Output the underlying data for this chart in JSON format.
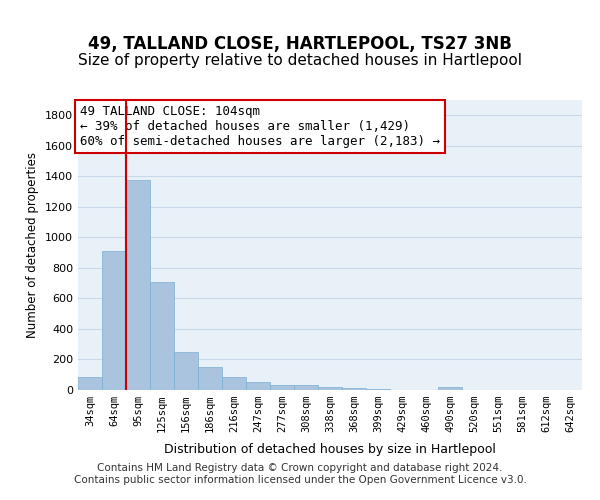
{
  "title": "49, TALLAND CLOSE, HARTLEPOOL, TS27 3NB",
  "subtitle": "Size of property relative to detached houses in Hartlepool",
  "xlabel": "Distribution of detached houses by size in Hartlepool",
  "ylabel": "Number of detached properties",
  "categories": [
    "34sqm",
    "64sqm",
    "95sqm",
    "125sqm",
    "156sqm",
    "186sqm",
    "216sqm",
    "247sqm",
    "277sqm",
    "308sqm",
    "338sqm",
    "368sqm",
    "399sqm",
    "429sqm",
    "460sqm",
    "490sqm",
    "520sqm",
    "551sqm",
    "581sqm",
    "612sqm",
    "642sqm"
  ],
  "values": [
    85,
    910,
    1375,
    710,
    250,
    148,
    88,
    52,
    30,
    30,
    18,
    12,
    5,
    0,
    0,
    18,
    0,
    0,
    0,
    0,
    0
  ],
  "bar_color": "#aac4e0",
  "bar_edge_color": "#7aafd0",
  "vline_x": 2,
  "vline_color": "#cc0000",
  "annotation_text": "49 TALLAND CLOSE: 104sqm\n← 39% of detached houses are smaller (1,429)\n60% of semi-detached houses are larger (2,183) →",
  "annotation_box_color": "#cc0000",
  "ylim": [
    0,
    1900
  ],
  "yticks": [
    0,
    200,
    400,
    600,
    800,
    1000,
    1200,
    1400,
    1600,
    1800
  ],
  "grid_color": "#c8d8e8",
  "bg_color": "#e8f0f8",
  "footer": "Contains HM Land Registry data © Crown copyright and database right 2024.\nContains public sector information licensed under the Open Government Licence v3.0.",
  "title_fontsize": 12,
  "subtitle_fontsize": 11,
  "annotation_fontsize": 9,
  "footer_fontsize": 7.5
}
